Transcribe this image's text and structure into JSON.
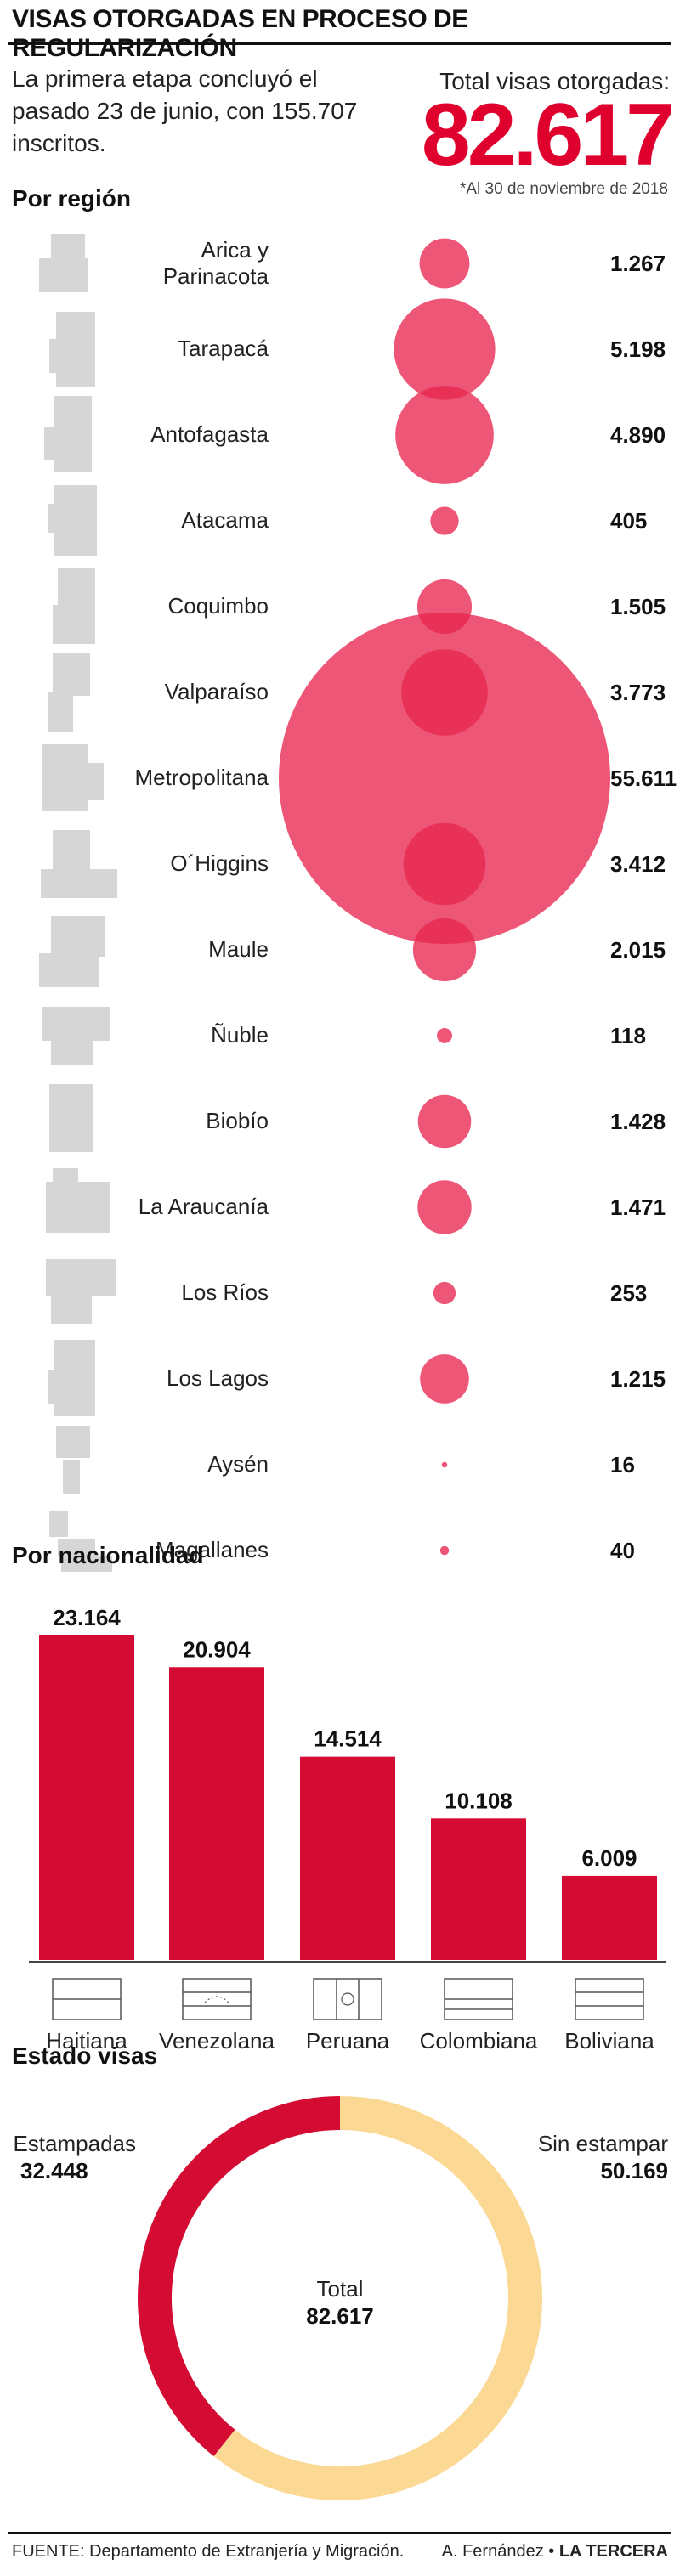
{
  "header": {
    "title": "VISAS OTORGADAS EN PROCESO DE REGULARIZACIÓN",
    "intro": "La primera etapa concluyó el pasado 23 de junio, con 155.707 inscritos.",
    "total_label": "Total visas otorgadas:",
    "total_value": "82.617",
    "date_note": "*Al 30 de noviembre de 2018"
  },
  "colors": {
    "bubble": "#e8264f",
    "bar": "#d40b33",
    "stamped": "#d40b33",
    "unstamped": "#fbd995",
    "silhouette": "#d6d6d6"
  },
  "chart_data": [
    {
      "type": "scatter",
      "title": "Por región",
      "encoding": "bubble area proportional to value",
      "categories": [
        "Arica y Parinacota",
        "Tarapacá",
        "Antofagasta",
        "Atacama",
        "Coquimbo",
        "Valparaíso",
        "Metropolitana",
        "O´Higgins",
        "Maule",
        "Ñuble",
        "Biobío",
        "La Araucanía",
        "Los Ríos",
        "Los Lagos",
        "Aysén",
        "Magallanes"
      ],
      "values": [
        1267,
        5198,
        4890,
        405,
        1505,
        3773,
        55611,
        3412,
        2015,
        118,
        1428,
        1471,
        253,
        1215,
        16,
        40
      ],
      "value_labels": [
        "1.267",
        "5.198",
        "4.890",
        "405",
        "1.505",
        "3.773",
        "55.611",
        "3.412",
        "2.015",
        "118",
        "1.428",
        "1.471",
        "253",
        "1.215",
        "16",
        "40"
      ]
    },
    {
      "type": "bar",
      "title": "Por nacionalidad",
      "categories": [
        "Haitiana",
        "Venezolana",
        "Peruana",
        "Colombiana",
        "Boliviana"
      ],
      "values": [
        23164,
        20904,
        14514,
        10108,
        6009
      ],
      "value_labels": [
        "23.164",
        "20.904",
        "14.514",
        "10.108",
        "6.009"
      ],
      "ylim": [
        0,
        23164
      ]
    },
    {
      "type": "pie",
      "title": "Estado visas",
      "categories": [
        "Estampadas",
        "Sin estampar"
      ],
      "values": [
        32448,
        50169
      ],
      "value_labels": [
        "32.448",
        "50.169"
      ],
      "center_label": "Total",
      "center_value": "82.617"
    }
  ],
  "footer": {
    "source": "FUENTE: Departamento de Extranjería y Migración.",
    "author": "A. Fernández •",
    "brand": "LA TERCERA"
  }
}
